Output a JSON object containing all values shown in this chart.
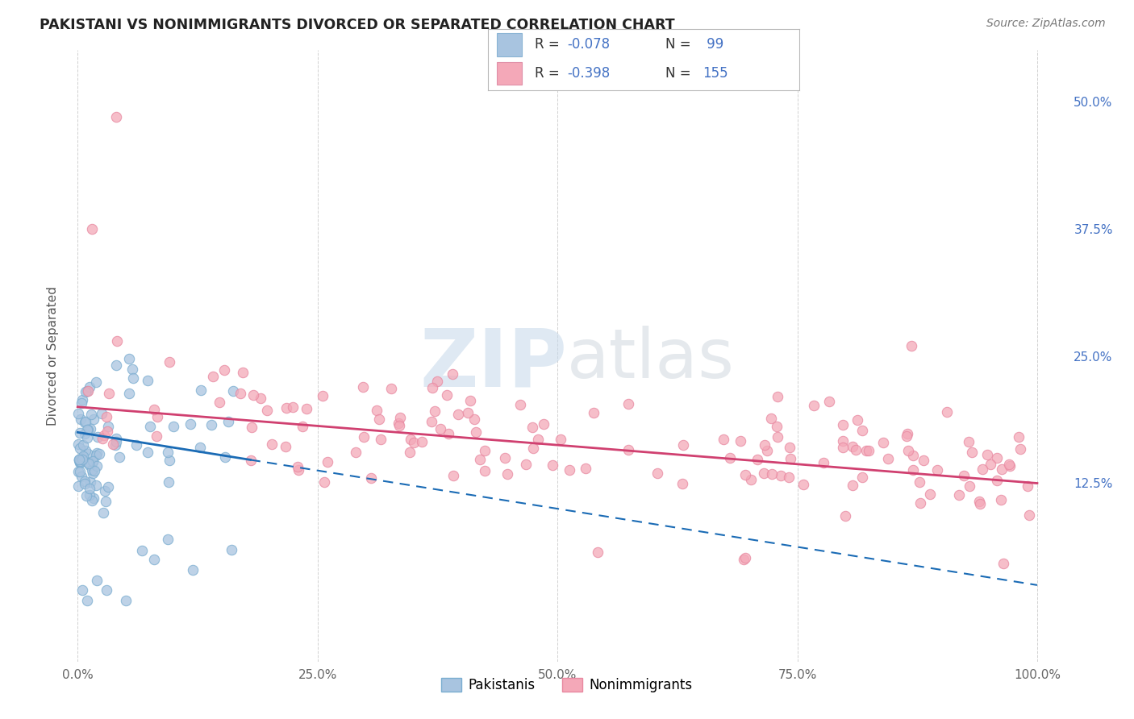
{
  "title": "PAKISTANI VS NONIMMIGRANTS DIVORCED OR SEPARATED CORRELATION CHART",
  "source": "Source: ZipAtlas.com",
  "ylabel": "Divorced or Separated",
  "pakistani_color": "#a8c4e0",
  "pakistani_edge_color": "#7aadd0",
  "nonimmigrant_color": "#f4a8b8",
  "nonimmigrant_edge_color": "#e888a0",
  "pakistani_line_color": "#1a6bb5",
  "nonimmigrant_line_color": "#d04070",
  "watermark_zip_color": "#c8d8ea",
  "watermark_atlas_color": "#d0d8e0",
  "background_color": "#ffffff",
  "grid_color": "#cccccc",
  "legend_R_color": "#333333",
  "legend_val_color": "#4472c4",
  "ytick_color": "#4472c4",
  "xtick_color": "#666666",
  "ylabel_color": "#555555"
}
